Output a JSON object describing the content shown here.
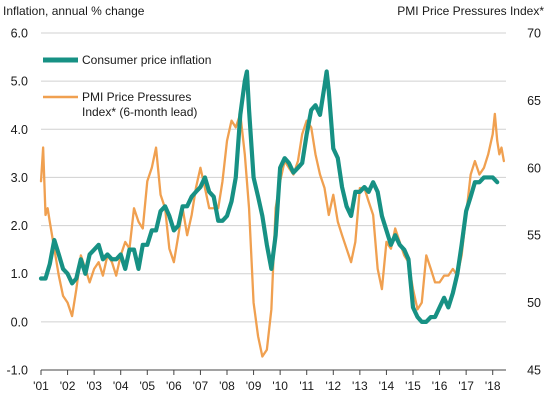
{
  "chart_data": {
    "type": "line",
    "title": "",
    "left_axis": {
      "label": "Inflation, annual % change",
      "min": -1.0,
      "max": 6.0,
      "ticks": [
        "-1.0",
        "0.0",
        "1.0",
        "2.0",
        "3.0",
        "4.0",
        "5.0",
        "6.0"
      ]
    },
    "right_axis": {
      "label": "PMI Price Pressures Index*",
      "min": 45,
      "max": 70,
      "ticks": [
        "45",
        "50",
        "55",
        "60",
        "65",
        "70"
      ]
    },
    "x_axis": {
      "min": 2001.0,
      "max": 2018.5,
      "ticks": [
        "'01",
        "'02",
        "'03",
        "'04",
        "'05",
        "'06",
        "'07",
        "'08",
        "'09",
        "'10",
        "'11",
        "'12",
        "'13",
        "'14",
        "'15",
        "'16",
        "'17",
        "'18"
      ]
    },
    "grid": "horizontal",
    "legend_position": "top-left",
    "colors": {
      "cpi": "#179184",
      "pmi": "#f0a050",
      "grid": "#d0d0d0",
      "axis": "#444444"
    },
    "series": [
      {
        "name": "Consumer price inflation",
        "axis": "left",
        "x": [
          2001.0,
          2001.17,
          2001.33,
          2001.5,
          2001.67,
          2001.83,
          2002.0,
          2002.17,
          2002.33,
          2002.5,
          2002.67,
          2002.83,
          2003.0,
          2003.17,
          2003.33,
          2003.5,
          2003.67,
          2003.83,
          2004.0,
          2004.17,
          2004.33,
          2004.5,
          2004.67,
          2004.83,
          2005.0,
          2005.17,
          2005.33,
          2005.5,
          2005.67,
          2005.83,
          2006.0,
          2006.17,
          2006.33,
          2006.5,
          2006.67,
          2006.83,
          2007.0,
          2007.17,
          2007.33,
          2007.5,
          2007.67,
          2007.83,
          2008.0,
          2008.17,
          2008.33,
          2008.5,
          2008.67,
          2008.75,
          2008.83,
          2009.0,
          2009.17,
          2009.33,
          2009.5,
          2009.67,
          2009.83,
          2010.0,
          2010.17,
          2010.33,
          2010.5,
          2010.67,
          2010.83,
          2011.0,
          2011.17,
          2011.33,
          2011.5,
          2011.67,
          2011.75,
          2011.83,
          2012.0,
          2012.17,
          2012.33,
          2012.5,
          2012.67,
          2012.83,
          2013.0,
          2013.17,
          2013.33,
          2013.5,
          2013.67,
          2013.83,
          2014.0,
          2014.17,
          2014.33,
          2014.5,
          2014.67,
          2014.83,
          2015.0,
          2015.17,
          2015.33,
          2015.5,
          2015.67,
          2015.83,
          2016.0,
          2016.17,
          2016.33,
          2016.5,
          2016.67,
          2016.83,
          2017.0,
          2017.17,
          2017.33,
          2017.5,
          2017.67,
          2017.83,
          2018.0,
          2018.17
        ],
        "y": [
          0.9,
          0.9,
          1.2,
          1.7,
          1.4,
          1.1,
          1.0,
          0.8,
          0.9,
          1.3,
          1.0,
          1.4,
          1.5,
          1.6,
          1.3,
          1.4,
          1.3,
          1.3,
          1.4,
          1.1,
          1.5,
          1.5,
          1.1,
          1.6,
          1.6,
          1.9,
          1.9,
          2.3,
          2.4,
          2.2,
          1.9,
          2.0,
          2.4,
          2.4,
          2.6,
          2.7,
          2.8,
          3.0,
          2.7,
          2.6,
          2.1,
          2.1,
          2.2,
          2.5,
          3.0,
          4.3,
          5.0,
          5.2,
          4.4,
          3.0,
          2.6,
          2.2,
          1.6,
          1.1,
          1.8,
          3.2,
          3.4,
          3.3,
          3.1,
          3.2,
          3.3,
          3.9,
          4.4,
          4.5,
          4.3,
          4.9,
          5.2,
          4.8,
          3.6,
          3.4,
          2.8,
          2.4,
          2.2,
          2.7,
          2.7,
          2.8,
          2.7,
          2.9,
          2.7,
          2.2,
          1.9,
          1.6,
          1.8,
          1.6,
          1.5,
          1.3,
          0.3,
          0.1,
          0.0,
          0.0,
          0.1,
          0.1,
          0.3,
          0.5,
          0.3,
          0.6,
          1.0,
          1.6,
          2.3,
          2.6,
          2.9,
          2.9,
          3.0,
          3.0,
          3.0,
          2.9
        ]
      },
      {
        "name": "PMI Price Pressures Index* (6-month lead)",
        "axis": "right",
        "x": [
          2001.0,
          2001.08,
          2001.17,
          2001.25,
          2001.33,
          2001.5,
          2001.67,
          2001.83,
          2002.0,
          2002.17,
          2002.33,
          2002.5,
          2002.67,
          2002.83,
          2003.0,
          2003.17,
          2003.33,
          2003.5,
          2003.67,
          2003.83,
          2004.0,
          2004.17,
          2004.33,
          2004.5,
          2004.67,
          2004.83,
          2005.0,
          2005.17,
          2005.33,
          2005.5,
          2005.67,
          2005.83,
          2006.0,
          2006.17,
          2006.33,
          2006.5,
          2006.67,
          2006.83,
          2007.0,
          2007.17,
          2007.33,
          2007.5,
          2007.67,
          2007.83,
          2008.0,
          2008.17,
          2008.33,
          2008.5,
          2008.67,
          2008.83,
          2009.0,
          2009.17,
          2009.33,
          2009.5,
          2009.67,
          2009.83,
          2010.0,
          2010.17,
          2010.33,
          2010.5,
          2010.67,
          2010.83,
          2011.0,
          2011.17,
          2011.33,
          2011.5,
          2011.67,
          2011.83,
          2012.0,
          2012.17,
          2012.33,
          2012.5,
          2012.67,
          2012.83,
          2013.0,
          2013.17,
          2013.33,
          2013.5,
          2013.67,
          2013.83,
          2014.0,
          2014.17,
          2014.33,
          2014.5,
          2014.67,
          2014.83,
          2015.0,
          2015.17,
          2015.33,
          2015.5,
          2015.67,
          2015.83,
          2016.0,
          2016.17,
          2016.33,
          2016.5,
          2016.67,
          2016.83,
          2017.0,
          2017.17,
          2017.33,
          2017.5,
          2017.67,
          2017.83,
          2018.0,
          2018.08,
          2018.17,
          2018.25,
          2018.33,
          2018.42
        ],
        "y": [
          59.0,
          61.5,
          56.5,
          57.0,
          56.0,
          54.0,
          52.0,
          50.5,
          50.0,
          49.0,
          51.0,
          53.5,
          52.5,
          51.5,
          52.5,
          53.0,
          52.0,
          53.5,
          53.0,
          52.0,
          53.5,
          54.5,
          54.0,
          57.0,
          56.0,
          55.5,
          59.0,
          60.0,
          61.5,
          58.0,
          57.0,
          54.0,
          53.0,
          55.0,
          57.0,
          55.0,
          56.5,
          58.5,
          60.0,
          58.5,
          57.0,
          57.0,
          57.0,
          59.0,
          62.0,
          63.5,
          63.0,
          64.0,
          61.0,
          57.0,
          50.0,
          47.5,
          46.0,
          46.5,
          49.5,
          57.0,
          59.0,
          60.5,
          60.0,
          59.5,
          60.5,
          62.5,
          63.5,
          63.0,
          61.0,
          59.5,
          58.5,
          56.5,
          58.0,
          56.0,
          55.0,
          54.0,
          53.0,
          54.5,
          58.5,
          58.5,
          57.5,
          56.5,
          52.5,
          51.0,
          54.5,
          54.0,
          55.5,
          54.5,
          53.5,
          53.0,
          51.0,
          49.5,
          50.0,
          53.5,
          52.5,
          51.5,
          51.5,
          52.0,
          52.0,
          52.5,
          52.0,
          53.5,
          56.5,
          59.5,
          60.5,
          59.5,
          60.0,
          61.0,
          62.5,
          64.0,
          62.0,
          61.0,
          61.5,
          60.5
        ]
      }
    ]
  }
}
